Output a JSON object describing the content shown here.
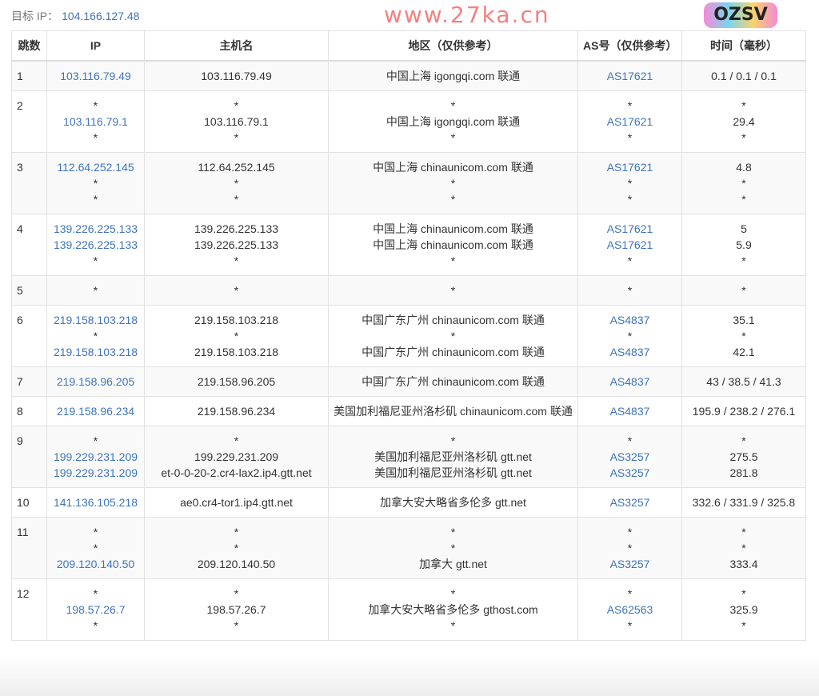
{
  "target": {
    "label": "目标 IP：",
    "ip": "104.166.127.48"
  },
  "columns": [
    "跳数",
    "IP",
    "主机名",
    "地区（仅供参考）",
    "AS号（仅供参考）",
    "时间（毫秒）"
  ],
  "rows": [
    {
      "hop": "1",
      "ip": [
        "103.116.79.49"
      ],
      "host": [
        "103.116.79.49"
      ],
      "loc": [
        "中国上海 igongqi.com 联通"
      ],
      "as": [
        "AS17621"
      ],
      "time": [
        "0.1 / 0.1 / 0.1"
      ]
    },
    {
      "hop": "2",
      "ip": [
        "*",
        "103.116.79.1",
        "*"
      ],
      "host": [
        "*",
        "103.116.79.1",
        "*"
      ],
      "loc": [
        "*",
        "中国上海 igongqi.com 联通",
        "*"
      ],
      "as": [
        "*",
        "AS17621",
        "*"
      ],
      "time": [
        "*",
        "29.4",
        "*"
      ]
    },
    {
      "hop": "3",
      "ip": [
        "112.64.252.145",
        "*",
        "*"
      ],
      "host": [
        "112.64.252.145",
        "*",
        "*"
      ],
      "loc": [
        "中国上海 chinaunicom.com 联通",
        "*",
        "*"
      ],
      "as": [
        "AS17621",
        "*",
        "*"
      ],
      "time": [
        "4.8",
        "*",
        "*"
      ]
    },
    {
      "hop": "4",
      "ip": [
        "139.226.225.133",
        "139.226.225.133",
        "*"
      ],
      "host": [
        "139.226.225.133",
        "139.226.225.133",
        "*"
      ],
      "loc": [
        "中国上海 chinaunicom.com 联通",
        "中国上海 chinaunicom.com 联通",
        "*"
      ],
      "as": [
        "AS17621",
        "AS17621",
        "*"
      ],
      "time": [
        "5",
        "5.9",
        "*"
      ]
    },
    {
      "hop": "5",
      "ip": [
        "*"
      ],
      "host": [
        "*"
      ],
      "loc": [
        "*"
      ],
      "as": [
        "*"
      ],
      "time": [
        "*"
      ]
    },
    {
      "hop": "6",
      "ip": [
        "219.158.103.218",
        "*",
        "219.158.103.218"
      ],
      "host": [
        "219.158.103.218",
        "*",
        "219.158.103.218"
      ],
      "loc": [
        "中国广东广州 chinaunicom.com 联通",
        "*",
        "中国广东广州 chinaunicom.com 联通"
      ],
      "as": [
        "AS4837",
        "*",
        "AS4837"
      ],
      "time": [
        "35.1",
        "*",
        "42.1"
      ]
    },
    {
      "hop": "7",
      "ip": [
        "219.158.96.205"
      ],
      "host": [
        "219.158.96.205"
      ],
      "loc": [
        "中国广东广州 chinaunicom.com 联通"
      ],
      "as": [
        "AS4837"
      ],
      "time": [
        "43 / 38.5 / 41.3"
      ]
    },
    {
      "hop": "8",
      "ip": [
        "219.158.96.234"
      ],
      "host": [
        "219.158.96.234"
      ],
      "loc": [
        "美国加利福尼亚州洛杉矶 chinaunicom.com 联通"
      ],
      "as": [
        "AS4837"
      ],
      "time": [
        "195.9 / 238.2 / 276.1"
      ]
    },
    {
      "hop": "9",
      "ip": [
        "*",
        "199.229.231.209",
        "199.229.231.209"
      ],
      "host": [
        "*",
        "199.229.231.209",
        "et-0-0-20-2.cr4-lax2.ip4.gtt.net"
      ],
      "loc": [
        "*",
        "美国加利福尼亚州洛杉矶 gtt.net",
        "美国加利福尼亚州洛杉矶 gtt.net"
      ],
      "as": [
        "*",
        "AS3257",
        "AS3257"
      ],
      "time": [
        "*",
        "275.5",
        "281.8"
      ]
    },
    {
      "hop": "10",
      "ip": [
        "141.136.105.218"
      ],
      "host": [
        "ae0.cr4-tor1.ip4.gtt.net"
      ],
      "loc": [
        "加拿大安大略省多伦多 gtt.net"
      ],
      "as": [
        "AS3257"
      ],
      "time": [
        "332.6 / 331.9 / 325.8"
      ]
    },
    {
      "hop": "11",
      "ip": [
        "*",
        "*",
        "209.120.140.50"
      ],
      "host": [
        "*",
        "*",
        "209.120.140.50"
      ],
      "loc": [
        "*",
        "*",
        "加拿大 gtt.net"
      ],
      "as": [
        "*",
        "*",
        "AS3257"
      ],
      "time": [
        "*",
        "*",
        "333.4"
      ]
    },
    {
      "hop": "12",
      "ip": [
        "*",
        "198.57.26.7",
        "*"
      ],
      "host": [
        "*",
        "198.57.26.7",
        "*"
      ],
      "loc": [
        "*",
        "加拿大安大略省多伦多 gthost.com",
        "*"
      ],
      "as": [
        "*",
        "AS62563",
        "*"
      ],
      "time": [
        "*",
        "325.9",
        "*"
      ]
    }
  ],
  "watermark": "www.27ka.cn",
  "logo_text": "OZSV",
  "colors": {
    "link": "#3f74b8",
    "watermark": "#f36b6b"
  }
}
